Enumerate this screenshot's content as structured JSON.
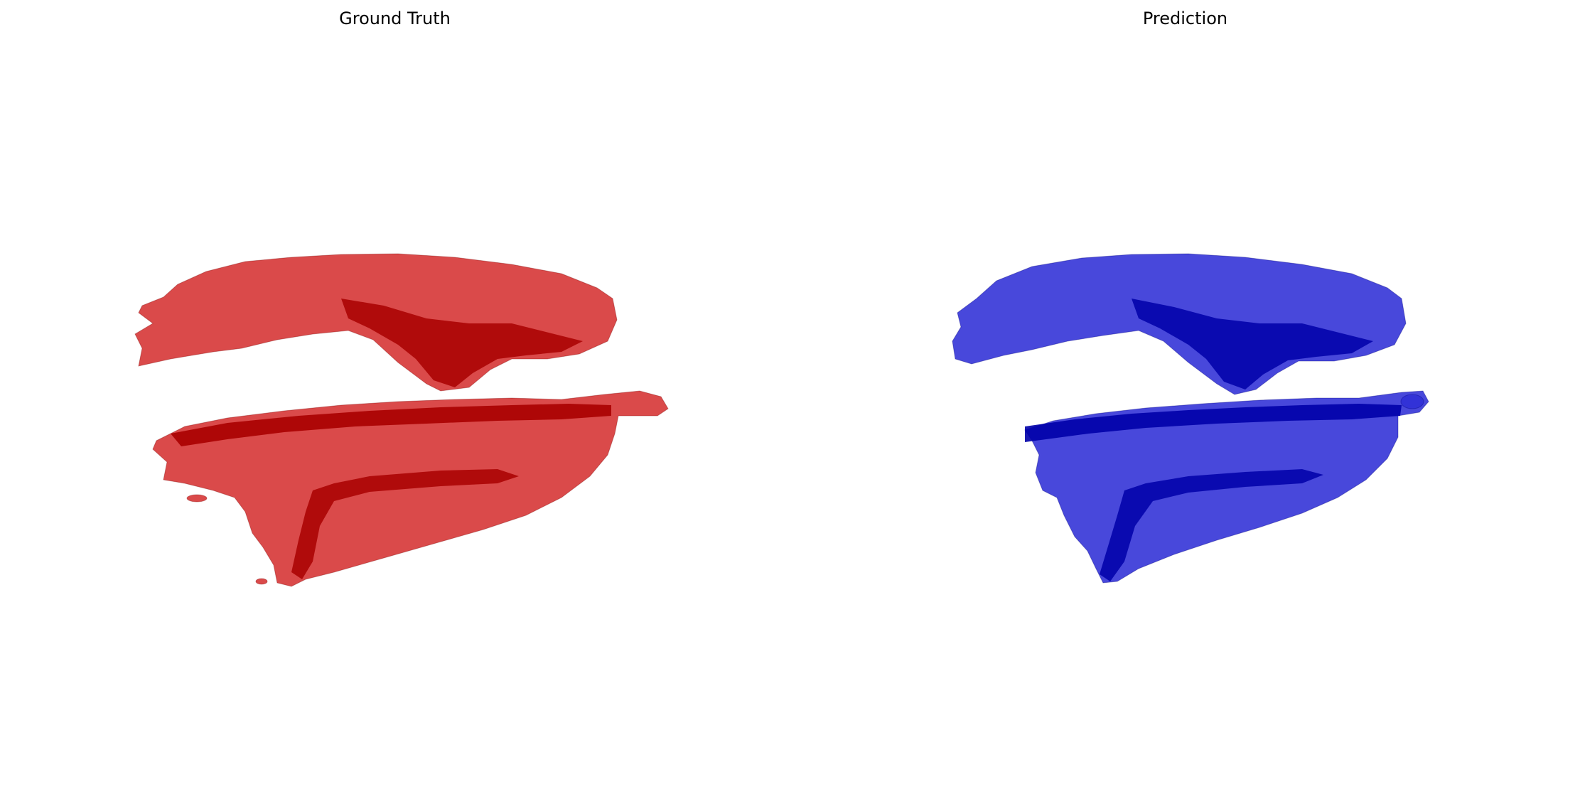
{
  "panels": [
    {
      "title": "Ground Truth",
      "color": "#d42a2a",
      "dark_color": "#a80000",
      "edge_color": "#7a0000"
    },
    {
      "title": "Prediction",
      "color": "#2f2fd6",
      "dark_color": "#0000a8",
      "edge_color": "#00007a"
    }
  ]
}
